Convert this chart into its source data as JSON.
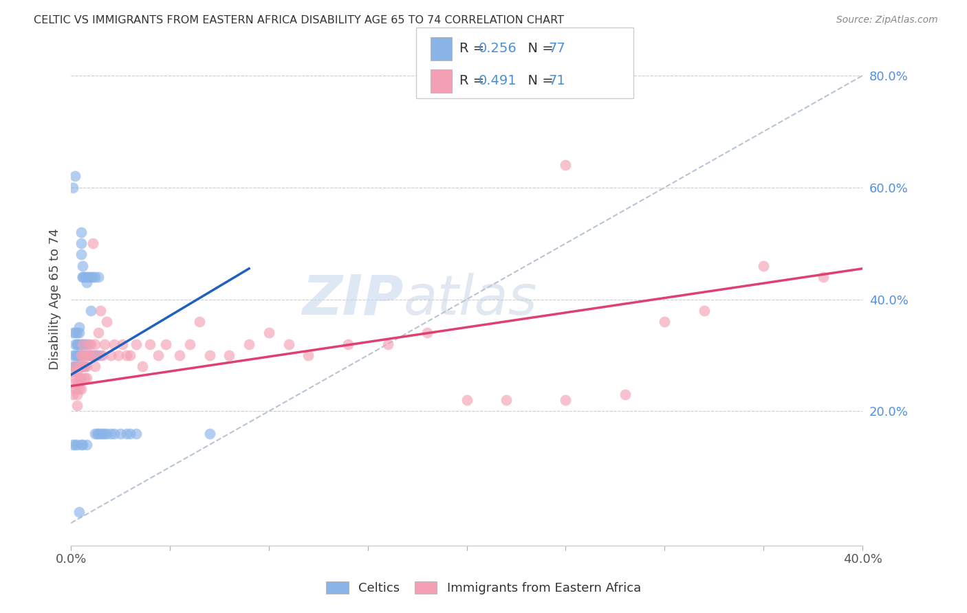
{
  "title": "CELTIC VS IMMIGRANTS FROM EASTERN AFRICA DISABILITY AGE 65 TO 74 CORRELATION CHART",
  "source": "Source: ZipAtlas.com",
  "ylabel": "Disability Age 65 to 74",
  "legend_label1": "Celtics",
  "legend_label2": "Immigrants from Eastern Africa",
  "R1": 0.256,
  "N1": 77,
  "R2": 0.491,
  "N2": 71,
  "xlim": [
    0.0,
    0.4
  ],
  "ylim": [
    -0.04,
    0.84
  ],
  "color1": "#8ab4e8",
  "color2": "#f4a0b4",
  "line_color1": "#2060c0",
  "line_color2": "#e04070",
  "dash_color": "#b8c4d4",
  "watermark_zip": "ZIP",
  "watermark_atlas": "atlas",
  "background_color": "#ffffff",
  "celtic_x": [
    0.001,
    0.001,
    0.001,
    0.001,
    0.002,
    0.002,
    0.002,
    0.002,
    0.002,
    0.003,
    0.003,
    0.003,
    0.003,
    0.003,
    0.003,
    0.003,
    0.004,
    0.004,
    0.004,
    0.004,
    0.004,
    0.004,
    0.004,
    0.005,
    0.005,
    0.005,
    0.005,
    0.005,
    0.005,
    0.005,
    0.006,
    0.006,
    0.006,
    0.006,
    0.006,
    0.006,
    0.007,
    0.007,
    0.007,
    0.007,
    0.008,
    0.008,
    0.008,
    0.008,
    0.009,
    0.009,
    0.01,
    0.01,
    0.01,
    0.011,
    0.011,
    0.012,
    0.012,
    0.012,
    0.013,
    0.013,
    0.014,
    0.014,
    0.015,
    0.015,
    0.016,
    0.017,
    0.018,
    0.02,
    0.022,
    0.025,
    0.028,
    0.03,
    0.033,
    0.008,
    0.006,
    0.005,
    0.004,
    0.003,
    0.002,
    0.001,
    0.07
  ],
  "celtic_y": [
    0.3,
    0.28,
    0.34,
    0.6,
    0.62,
    0.3,
    0.28,
    0.34,
    0.32,
    0.3,
    0.28,
    0.32,
    0.34,
    0.3,
    0.28,
    0.32,
    0.3,
    0.28,
    0.34,
    0.32,
    0.3,
    0.28,
    0.35,
    0.5,
    0.52,
    0.48,
    0.3,
    0.28,
    0.32,
    0.3,
    0.44,
    0.46,
    0.28,
    0.3,
    0.32,
    0.44,
    0.3,
    0.32,
    0.28,
    0.44,
    0.43,
    0.44,
    0.3,
    0.32,
    0.44,
    0.3,
    0.38,
    0.3,
    0.44,
    0.3,
    0.44,
    0.44,
    0.3,
    0.16,
    0.3,
    0.16,
    0.44,
    0.16,
    0.3,
    0.16,
    0.16,
    0.16,
    0.16,
    0.16,
    0.16,
    0.16,
    0.16,
    0.16,
    0.16,
    0.14,
    0.14,
    0.14,
    0.02,
    0.14,
    0.14,
    0.14,
    0.16
  ],
  "imm_x": [
    0.001,
    0.001,
    0.001,
    0.002,
    0.002,
    0.002,
    0.003,
    0.003,
    0.003,
    0.003,
    0.004,
    0.004,
    0.004,
    0.005,
    0.005,
    0.005,
    0.005,
    0.006,
    0.006,
    0.006,
    0.007,
    0.007,
    0.007,
    0.008,
    0.008,
    0.008,
    0.009,
    0.009,
    0.01,
    0.01,
    0.011,
    0.012,
    0.012,
    0.013,
    0.014,
    0.015,
    0.016,
    0.017,
    0.018,
    0.02,
    0.022,
    0.024,
    0.026,
    0.028,
    0.03,
    0.033,
    0.036,
    0.04,
    0.044,
    0.048,
    0.055,
    0.06,
    0.065,
    0.07,
    0.08,
    0.09,
    0.1,
    0.11,
    0.12,
    0.14,
    0.16,
    0.18,
    0.2,
    0.22,
    0.25,
    0.28,
    0.3,
    0.32,
    0.35,
    0.38,
    0.25
  ],
  "imm_y": [
    0.27,
    0.25,
    0.23,
    0.28,
    0.26,
    0.24,
    0.27,
    0.25,
    0.23,
    0.21,
    0.28,
    0.26,
    0.24,
    0.3,
    0.28,
    0.26,
    0.24,
    0.32,
    0.3,
    0.28,
    0.3,
    0.28,
    0.26,
    0.3,
    0.28,
    0.26,
    0.32,
    0.3,
    0.32,
    0.3,
    0.5,
    0.32,
    0.28,
    0.3,
    0.34,
    0.38,
    0.3,
    0.32,
    0.36,
    0.3,
    0.32,
    0.3,
    0.32,
    0.3,
    0.3,
    0.32,
    0.28,
    0.32,
    0.3,
    0.32,
    0.3,
    0.32,
    0.36,
    0.3,
    0.3,
    0.32,
    0.34,
    0.32,
    0.3,
    0.32,
    0.32,
    0.34,
    0.22,
    0.22,
    0.22,
    0.23,
    0.36,
    0.38,
    0.46,
    0.44,
    0.64
  ],
  "line1_x": [
    0.0,
    0.09
  ],
  "line1_y": [
    0.265,
    0.455
  ],
  "line2_x": [
    0.0,
    0.4
  ],
  "line2_y": [
    0.245,
    0.455
  ]
}
